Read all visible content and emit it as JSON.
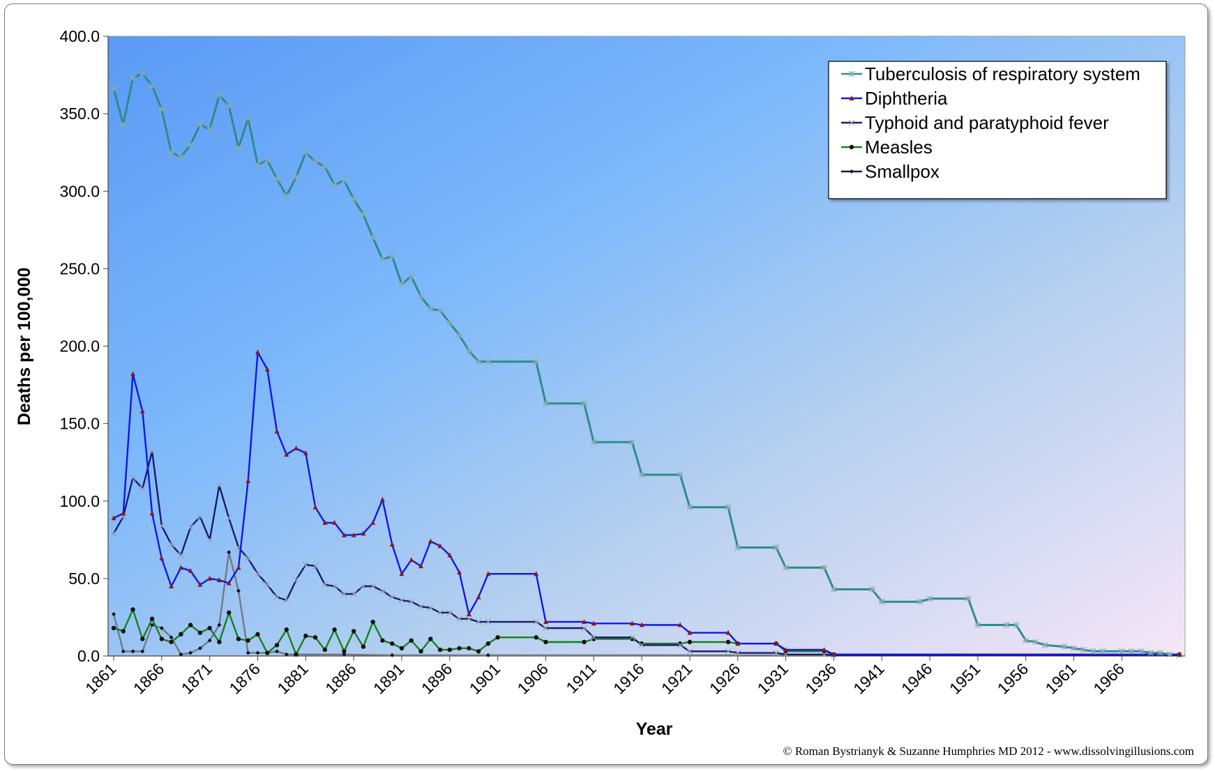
{
  "chart_data": {
    "type": "line",
    "title": "",
    "xlabel": "Year",
    "ylabel": "Deaths per 100,000",
    "ylim": [
      0,
      400
    ],
    "xlim": [
      1861,
      1972
    ],
    "y_ticks": [
      "0.0",
      "50.0",
      "100.0",
      "150.0",
      "200.0",
      "250.0",
      "300.0",
      "350.0",
      "400.0"
    ],
    "x_ticks": [
      "1861",
      "1866",
      "1871",
      "1876",
      "1881",
      "1886",
      "1891",
      "1896",
      "1901",
      "1906",
      "1911",
      "1916",
      "1921",
      "1926",
      "1931",
      "1936",
      "1941",
      "1946",
      "1951",
      "1956",
      "1961",
      "1966"
    ],
    "legend_position": "top-right",
    "grid": false,
    "series": [
      {
        "name": "Tuberculosis of respiratory system",
        "color": "#2e8b8b",
        "marker": "asterisk",
        "x": [
          1861,
          1862,
          1863,
          1864,
          1865,
          1866,
          1867,
          1868,
          1869,
          1870,
          1871,
          1872,
          1873,
          1874,
          1875,
          1876,
          1877,
          1878,
          1879,
          1880,
          1881,
          1882,
          1883,
          1884,
          1885,
          1886,
          1887,
          1888,
          1889,
          1890,
          1891,
          1892,
          1893,
          1894,
          1895,
          1896,
          1897,
          1898,
          1899,
          1900,
          1905,
          1906,
          1910,
          1911,
          1915,
          1916,
          1920,
          1921,
          1925,
          1926,
          1930,
          1931,
          1935,
          1936,
          1940,
          1941,
          1945,
          1946,
          1950,
          1951,
          1954,
          1955,
          1956,
          1957,
          1958,
          1960,
          1961,
          1962,
          1963,
          1964,
          1966,
          1967,
          1968,
          1969,
          1970,
          1971
        ],
        "y": [
          366,
          343,
          373,
          376,
          368,
          353,
          325,
          322,
          330,
          343,
          340,
          362,
          355,
          328,
          347,
          317,
          320,
          308,
          297,
          309,
          325,
          319,
          316,
          304,
          307,
          295,
          285,
          270,
          256,
          258,
          240,
          245,
          232,
          224,
          223,
          215,
          207,
          197,
          190,
          190,
          190,
          163,
          163,
          138,
          138,
          117,
          117,
          96,
          96,
          70,
          70,
          57,
          57,
          43,
          43,
          35,
          35,
          37,
          37,
          20,
          20,
          20,
          10,
          9,
          7,
          6,
          5,
          4,
          3,
          3,
          3,
          3,
          3,
          2,
          2,
          1
        ]
      },
      {
        "name": "Diphtheria",
        "color": "#1414e6",
        "marker": "triangle",
        "x": [
          1861,
          1862,
          1863,
          1864,
          1865,
          1866,
          1867,
          1868,
          1869,
          1870,
          1871,
          1872,
          1873,
          1874,
          1875,
          1876,
          1877,
          1878,
          1879,
          1880,
          1881,
          1882,
          1883,
          1884,
          1885,
          1886,
          1887,
          1888,
          1889,
          1890,
          1891,
          1892,
          1893,
          1894,
          1895,
          1896,
          1897,
          1898,
          1899,
          1900,
          1905,
          1906,
          1910,
          1911,
          1915,
          1916,
          1920,
          1921,
          1925,
          1926,
          1930,
          1931,
          1935,
          1936,
          1972
        ],
        "y": [
          89,
          92,
          182,
          158,
          92,
          63,
          45,
          57,
          55,
          46,
          50,
          49,
          47,
          57,
          113,
          196,
          185,
          145,
          130,
          134,
          131,
          96,
          86,
          86,
          78,
          78,
          79,
          86,
          101,
          72,
          53,
          62,
          58,
          74,
          71,
          65,
          54,
          27,
          38,
          53,
          53,
          22,
          22,
          21,
          21,
          20,
          20,
          15,
          15,
          8,
          8,
          4,
          4,
          1,
          1
        ]
      },
      {
        "name": "Typhoid and paratyphoid fever",
        "color": "#1a1a6e",
        "marker": "x",
        "x": [
          1861,
          1862,
          1863,
          1864,
          1865,
          1866,
          1867,
          1868,
          1869,
          1870,
          1871,
          1872,
          1873,
          1874,
          1875,
          1876,
          1877,
          1878,
          1879,
          1880,
          1881,
          1882,
          1883,
          1884,
          1885,
          1886,
          1887,
          1888,
          1889,
          1890,
          1891,
          1892,
          1893,
          1894,
          1895,
          1896,
          1897,
          1898,
          1899,
          1900,
          1905,
          1906,
          1910,
          1911,
          1915,
          1916,
          1920,
          1921,
          1925,
          1926,
          1930,
          1931,
          1935,
          1936,
          1972
        ],
        "y": [
          79,
          90,
          115,
          108,
          132,
          84,
          72,
          65,
          83,
          90,
          75,
          110,
          89,
          70,
          63,
          53,
          46,
          38,
          36,
          49,
          59,
          58,
          46,
          45,
          40,
          40,
          45,
          45,
          42,
          38,
          36,
          35,
          32,
          31,
          28,
          28,
          24,
          24,
          22,
          22,
          22,
          18,
          18,
          12,
          12,
          7,
          7,
          3,
          3,
          2,
          2,
          1,
          1,
          0.5,
          0.5
        ]
      },
      {
        "name": "Measles",
        "color": "#15801a",
        "marker": "circle",
        "x": [
          1861,
          1862,
          1863,
          1864,
          1865,
          1866,
          1867,
          1868,
          1869,
          1870,
          1871,
          1872,
          1873,
          1874,
          1875,
          1876,
          1877,
          1878,
          1879,
          1880,
          1881,
          1882,
          1883,
          1884,
          1885,
          1886,
          1887,
          1888,
          1889,
          1890,
          1891,
          1892,
          1893,
          1894,
          1895,
          1896,
          1897,
          1898,
          1899,
          1900,
          1901,
          1905,
          1906,
          1910,
          1911,
          1915,
          1916,
          1920,
          1921,
          1925,
          1926,
          1930,
          1931,
          1935,
          1936,
          1972
        ],
        "y": [
          18,
          16,
          30,
          11,
          24,
          11,
          9,
          14,
          20,
          15,
          18,
          9,
          28,
          11,
          10,
          14,
          2,
          7,
          17,
          1,
          13,
          12,
          4,
          17,
          3,
          16,
          6,
          22,
          10,
          8,
          5,
          10,
          3,
          11,
          4,
          4,
          5,
          5,
          3,
          8,
          12,
          12,
          9,
          9,
          11,
          11,
          8,
          8,
          9,
          9,
          8,
          8,
          3,
          3,
          1,
          1
        ]
      },
      {
        "name": "Smallpox",
        "color": "#0f1e3c",
        "marker": "diamond",
        "x": [
          1861,
          1862,
          1863,
          1864,
          1865,
          1866,
          1867,
          1868,
          1869,
          1870,
          1871,
          1872,
          1873,
          1874,
          1875,
          1876,
          1877,
          1878,
          1879,
          1880,
          1885,
          1890,
          1900,
          1972
        ],
        "y": [
          27,
          3,
          3,
          3,
          20,
          18,
          12,
          1,
          2,
          5,
          10,
          20,
          67,
          42,
          2,
          2,
          2,
          3,
          1,
          1,
          1,
          0.5,
          0.5,
          0.5
        ]
      }
    ]
  },
  "copyright": "© Roman Bystrianyk & Suzanne Humphries MD 2012 - www.dissolvingillusions.com"
}
